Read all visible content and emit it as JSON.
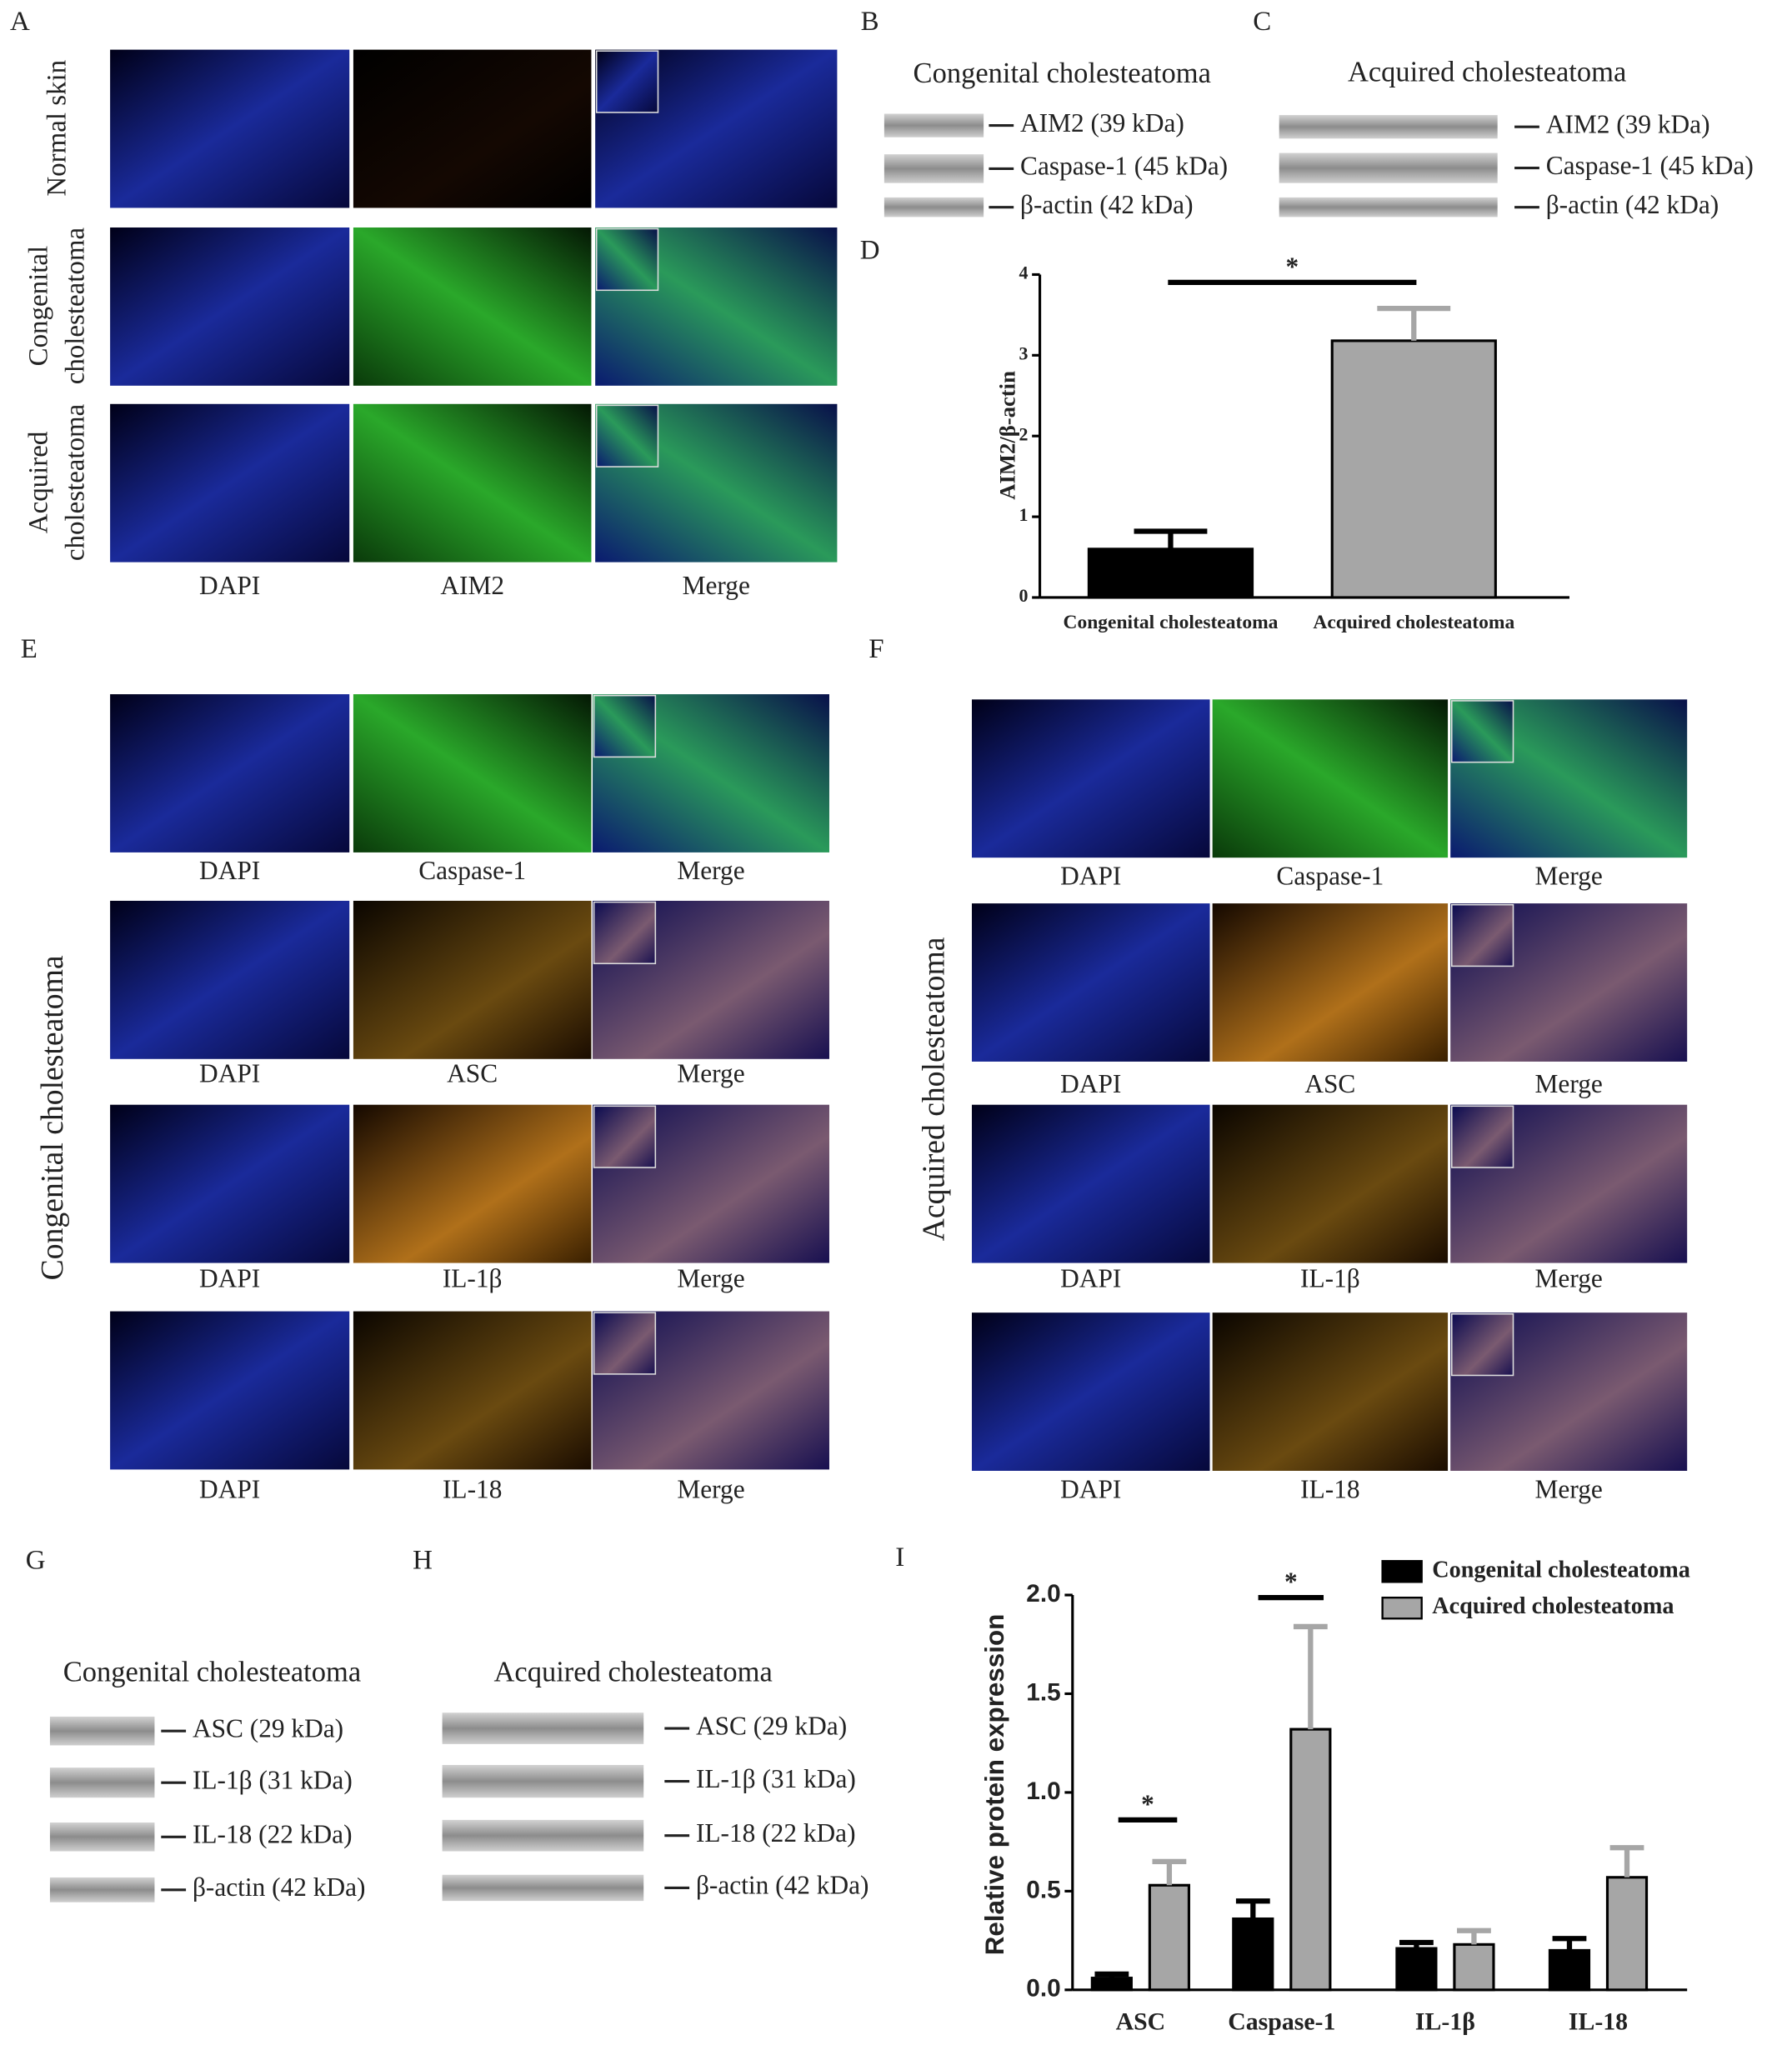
{
  "panel_labels": [
    "A",
    "B",
    "C",
    "D",
    "E",
    "F",
    "G",
    "H",
    "I"
  ],
  "panel_a": {
    "row_labels": [
      [
        "Normal skin"
      ],
      [
        "Congenital",
        "cholesteatoma"
      ],
      [
        "Acquired",
        "cholesteatoma"
      ]
    ],
    "column_labels": [
      "DAPI",
      "AIM2",
      "Merge"
    ]
  },
  "panel_b": {
    "title": "Congenital cholesteatoma",
    "band_labels": [
      "AIM2 (39 kDa)",
      "Caspase-1 (45 kDa)",
      "β-actin (42 kDa)"
    ]
  },
  "panel_c": {
    "title": "Acquired cholesteatoma",
    "band_labels": [
      "AIM2 (39 kDa)",
      "Caspase-1 (45 kDa)",
      "β-actin (42 kDa)"
    ]
  },
  "panel_e": {
    "side_label": "Congenital cholesteatoma",
    "column_labels": [
      [
        "DAPI",
        "Caspase-1",
        "Merge"
      ],
      [
        "DAPI",
        "ASC",
        "Merge"
      ],
      [
        "DAPI",
        "IL-1β",
        "Merge"
      ],
      [
        "DAPI",
        "IL-18",
        "Merge"
      ]
    ]
  },
  "panel_f": {
    "side_label": "Acquired cholesteatoma",
    "column_labels": [
      [
        "DAPI",
        "Caspase-1",
        "Merge"
      ],
      [
        "DAPI",
        "ASC",
        "Merge"
      ],
      [
        "DAPI",
        "IL-1β",
        "Merge"
      ],
      [
        "DAPI",
        "IL-18",
        "Merge"
      ]
    ]
  },
  "panel_g": {
    "title": "Congenital cholesteatoma",
    "band_labels": [
      "ASC (29 kDa)",
      "IL-1β (31 kDa)",
      "IL-18 (22 kDa)",
      "β-actin (42 kDa)"
    ]
  },
  "panel_h": {
    "title": "Acquired cholesteatoma",
    "band_labels": [
      "ASC (29 kDa)",
      "IL-1β (31 kDa)",
      "IL-18 (22 kDa)",
      "β-actin (42 kDa)"
    ]
  },
  "chart_data": [
    {
      "type": "bar",
      "ylabel": "AIM2/β-actin",
      "categories": [
        "Congenital cholesteatoma",
        "Acquired cholesteatoma"
      ],
      "values": [
        0.6,
        3.18
      ],
      "errors": [
        0.22,
        0.4
      ],
      "colors": [
        "#000000",
        "#a6a6a6"
      ],
      "ylim": [
        0,
        4
      ],
      "yticks": [
        0,
        1,
        2,
        3,
        4
      ],
      "annotations": [
        "*"
      ]
    },
    {
      "type": "bar",
      "ylabel": "Relative protein expression",
      "categories": [
        "ASC",
        "Caspase-1",
        "IL-1β",
        "IL-18"
      ],
      "series": [
        {
          "name": "Congenital cholesteatoma",
          "color": "#000000",
          "values": [
            0.06,
            0.36,
            0.21,
            0.2
          ],
          "errors": [
            0.02,
            0.09,
            0.03,
            0.06
          ]
        },
        {
          "name": "Acquired cholesteatoma",
          "color": "#a6a6a6",
          "values": [
            0.53,
            1.32,
            0.23,
            0.57
          ],
          "errors": [
            0.12,
            0.52,
            0.07,
            0.15
          ]
        }
      ],
      "ylim": [
        0,
        2
      ],
      "yticks": [
        {
          "value": 0,
          "label": "0.0"
        },
        0.5,
        {
          "value": 1,
          "label": "1.0"
        },
        1.5,
        {
          "value": 2,
          "label": "2.0"
        }
      ],
      "annotations": [
        "*",
        "*"
      ]
    }
  ]
}
